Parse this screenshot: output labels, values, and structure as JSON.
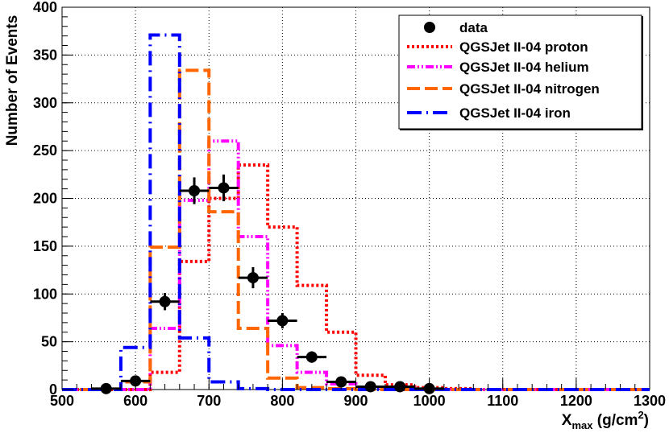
{
  "chart_data": {
    "type": "line",
    "xlabel": "X",
    "xlabel_sub": "max",
    "xlabel_unit": " (g/cm",
    "xlabel_sup": "2",
    "xlabel_close": ")",
    "ylabel": "Number of Events",
    "xlim": [
      500,
      1300
    ],
    "ylim": [
      0,
      400
    ],
    "x_ticks": [
      500,
      600,
      700,
      800,
      900,
      1000,
      1100,
      1200,
      1300
    ],
    "y_ticks": [
      0,
      50,
      100,
      150,
      200,
      250,
      300,
      350,
      400
    ],
    "grid": true,
    "legend_position": "top-right",
    "bin_edges": [
      500,
      540,
      580,
      620,
      660,
      700,
      740,
      780,
      820,
      860,
      900,
      940,
      980,
      1020,
      1060,
      1100,
      1140,
      1180,
      1220,
      1260,
      1300
    ],
    "data": {
      "name": "data",
      "color": "#000000",
      "points": [
        {
          "x": 560,
          "y": 1,
          "err": 1
        },
        {
          "x": 600,
          "y": 9,
          "err": 3
        },
        {
          "x": 640,
          "y": 92,
          "err": 9
        },
        {
          "x": 680,
          "y": 208,
          "err": 14
        },
        {
          "x": 720,
          "y": 211,
          "err": 14
        },
        {
          "x": 760,
          "y": 117,
          "err": 11
        },
        {
          "x": 800,
          "y": 72,
          "err": 8
        },
        {
          "x": 840,
          "y": 34,
          "err": 6
        },
        {
          "x": 880,
          "y": 8,
          "err": 3
        },
        {
          "x": 920,
          "y": 3,
          "err": 2
        },
        {
          "x": 960,
          "y": 3,
          "err": 2
        },
        {
          "x": 1000,
          "y": 1,
          "err": 1
        }
      ]
    },
    "series": [
      {
        "name": "QGSJet II-04 proton",
        "color": "#ff0000",
        "dash": "3,3",
        "values": [
          0,
          0,
          0,
          18,
          134,
          200,
          235,
          170,
          109,
          60,
          15,
          5,
          2,
          1,
          0,
          0,
          0,
          0,
          0,
          0
        ]
      },
      {
        "name": "QGSJet II-04 helium",
        "color": "#ff00ff",
        "dash": "10,3,2,3,2,3",
        "values": [
          0,
          0,
          0,
          64,
          198,
          260,
          160,
          46,
          18,
          6,
          2,
          1,
          0,
          0,
          0,
          0,
          0,
          0,
          0,
          0
        ]
      },
      {
        "name": "QGSJet II-04 nitrogen",
        "color": "#ff6600",
        "dash": "16,6",
        "values": [
          0,
          0,
          8,
          149,
          334,
          186,
          64,
          12,
          2,
          1,
          0,
          0,
          0,
          0,
          0,
          0,
          0,
          0,
          0,
          0
        ]
      },
      {
        "name": "QGSJet II-04 iron",
        "color": "#0000ff",
        "dash": "18,6,2,6",
        "values": [
          0,
          0,
          44,
          371,
          54,
          8,
          1,
          0,
          0,
          0,
          0,
          0,
          0,
          0,
          0,
          0,
          0,
          0,
          0,
          0
        ]
      }
    ]
  }
}
